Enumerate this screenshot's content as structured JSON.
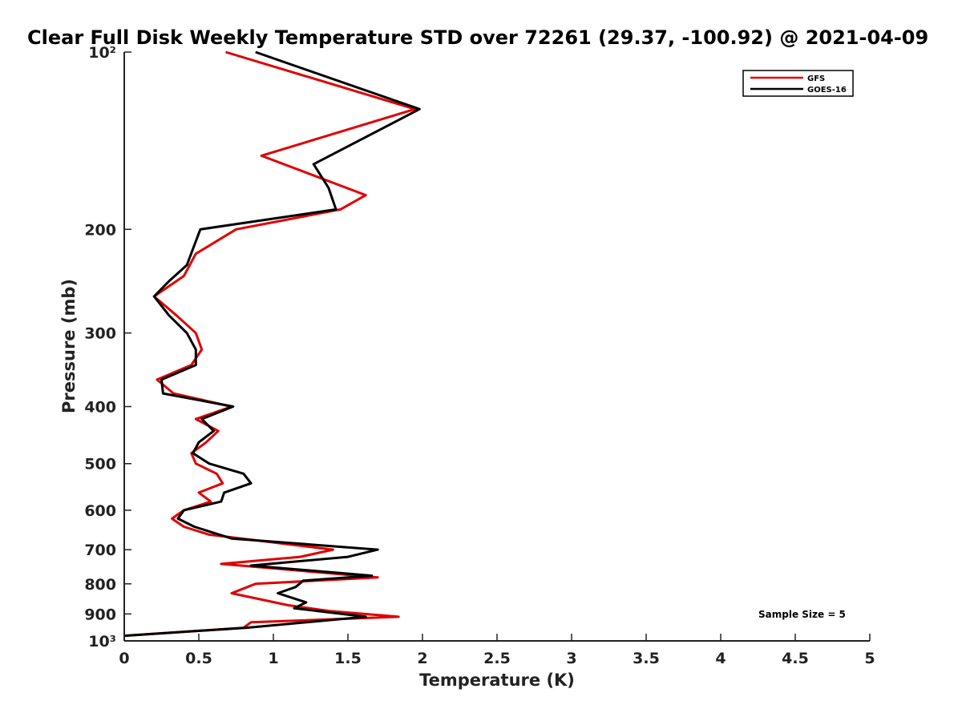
{
  "chart_data": {
    "type": "line",
    "title": "Clear Full Disk Weekly Temperature STD over 72261 (29.37, -100.92) @ 2021-04-09",
    "xlabel": "Temperature (K)",
    "ylabel": "Pressure (mb)",
    "xlim": [
      0,
      5
    ],
    "ylim": [
      100,
      1000
    ],
    "y_scale": "log",
    "y_reversed": true,
    "grid": false,
    "legend_position": "top-right",
    "x_ticks": [
      0,
      0.5,
      1,
      1.5,
      2,
      2.5,
      3,
      3.5,
      4,
      4.5,
      5
    ],
    "x_tick_labels": [
      "0",
      "0.5",
      "1",
      "1.5",
      "2",
      "2.5",
      "3",
      "3.5",
      "4",
      "4.5",
      "5"
    ],
    "y_ticks": [
      100,
      200,
      300,
      400,
      500,
      600,
      700,
      800,
      900,
      1000
    ],
    "y_tick_labels": [
      "10²",
      "200",
      "300",
      "400",
      "500",
      "600",
      "700",
      "800",
      "900",
      "10³"
    ],
    "annotation": "Sample Size = 5",
    "series": [
      {
        "name": "GFS",
        "color": "#e00000",
        "points": [
          [
            0.68,
            100
          ],
          [
            1.95,
            125
          ],
          [
            0.92,
            150
          ],
          [
            1.62,
            175
          ],
          [
            1.45,
            185
          ],
          [
            0.75,
            200
          ],
          [
            0.48,
            220
          ],
          [
            0.4,
            240
          ],
          [
            0.2,
            260
          ],
          [
            0.35,
            280
          ],
          [
            0.48,
            300
          ],
          [
            0.52,
            320
          ],
          [
            0.45,
            340
          ],
          [
            0.22,
            360
          ],
          [
            0.33,
            380
          ],
          [
            0.72,
            400
          ],
          [
            0.48,
            420
          ],
          [
            0.63,
            440
          ],
          [
            0.55,
            460
          ],
          [
            0.45,
            480
          ],
          [
            0.48,
            500
          ],
          [
            0.62,
            520
          ],
          [
            0.66,
            540
          ],
          [
            0.5,
            560
          ],
          [
            0.58,
            580
          ],
          [
            0.4,
            600
          ],
          [
            0.32,
            620
          ],
          [
            0.4,
            640
          ],
          [
            0.57,
            660
          ],
          [
            1.4,
            700
          ],
          [
            1.18,
            720
          ],
          [
            0.65,
            740
          ],
          [
            1.7,
            780
          ],
          [
            0.88,
            800
          ],
          [
            0.72,
            830
          ],
          [
            1.1,
            870
          ],
          [
            1.38,
            890
          ],
          [
            1.84,
            910
          ],
          [
            0.85,
            930
          ],
          [
            0.8,
            950
          ],
          [
            0.0,
            980
          ]
        ]
      },
      {
        "name": "GOES-16",
        "color": "#000000",
        "points": [
          [
            0.88,
            100
          ],
          [
            1.98,
            125
          ],
          [
            1.27,
            155
          ],
          [
            1.37,
            170
          ],
          [
            1.42,
            185
          ],
          [
            0.51,
            200
          ],
          [
            0.42,
            230
          ],
          [
            0.3,
            245
          ],
          [
            0.2,
            260
          ],
          [
            0.3,
            280
          ],
          [
            0.42,
            300
          ],
          [
            0.48,
            320
          ],
          [
            0.48,
            340
          ],
          [
            0.25,
            360
          ],
          [
            0.26,
            380
          ],
          [
            0.73,
            400
          ],
          [
            0.52,
            420
          ],
          [
            0.6,
            440
          ],
          [
            0.5,
            460
          ],
          [
            0.46,
            480
          ],
          [
            0.57,
            500
          ],
          [
            0.8,
            520
          ],
          [
            0.85,
            540
          ],
          [
            0.67,
            560
          ],
          [
            0.65,
            580
          ],
          [
            0.4,
            600
          ],
          [
            0.36,
            620
          ],
          [
            0.47,
            640
          ],
          [
            0.72,
            670
          ],
          [
            1.7,
            700
          ],
          [
            1.5,
            720
          ],
          [
            0.85,
            745
          ],
          [
            1.66,
            775
          ],
          [
            1.2,
            790
          ],
          [
            1.15,
            810
          ],
          [
            1.03,
            830
          ],
          [
            1.22,
            860
          ],
          [
            1.14,
            880
          ],
          [
            1.62,
            910
          ],
          [
            0.82,
            950
          ],
          [
            0.0,
            980
          ]
        ]
      }
    ]
  }
}
